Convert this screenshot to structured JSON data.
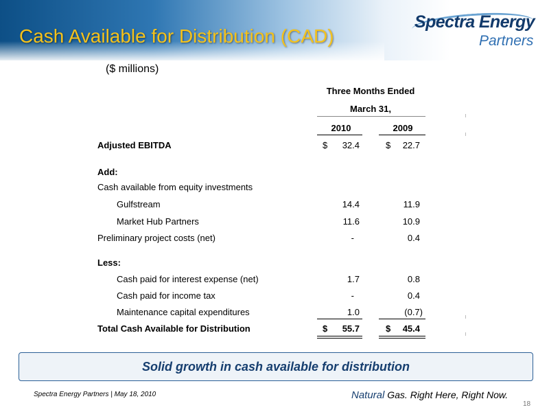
{
  "title": "Cash Available for Distribution (CAD)",
  "logo": {
    "name": "Spectra Energy",
    "sub": "Partners"
  },
  "units": "($ millions)",
  "table": {
    "header_line1": "Three Months Ended",
    "header_line2": "March 31,",
    "col1": "2010",
    "col2": "2009",
    "rows": [
      {
        "label": "Adjusted EBITDA",
        "c1": "32.4",
        "c2": "22.7"
      },
      {
        "label": "Add:"
      },
      {
        "label": "Cash available from equity investments"
      },
      {
        "label": "Gulfstream",
        "c1": "14.4",
        "c2": "11.9"
      },
      {
        "label": "Market Hub Partners",
        "c1": "11.6",
        "c2": "10.9"
      },
      {
        "label": "Preliminary project costs (net)",
        "c1": "-",
        "c2": "0.4"
      },
      {
        "label": "Less:"
      },
      {
        "label": "Cash paid for interest expense (net)",
        "c1": "1.7",
        "c2": "0.8"
      },
      {
        "label": "Cash paid for income tax",
        "c1": "-",
        "c2": "0.4"
      },
      {
        "label": "Maintenance capital expenditures",
        "c1": "1.0",
        "c2": "(0.7)"
      },
      {
        "label": "Total Cash Available for Distribution",
        "c1": "55.7",
        "c2": "45.4"
      }
    ],
    "currency": "$"
  },
  "callout": "Solid growth in cash available for distribution",
  "footer": {
    "left": "Spectra Energy Partners | May 18, 2010",
    "tagline_natural": "Natural",
    "tagline_rest": " Gas.  Right Here, Right Now.",
    "page": "18"
  }
}
